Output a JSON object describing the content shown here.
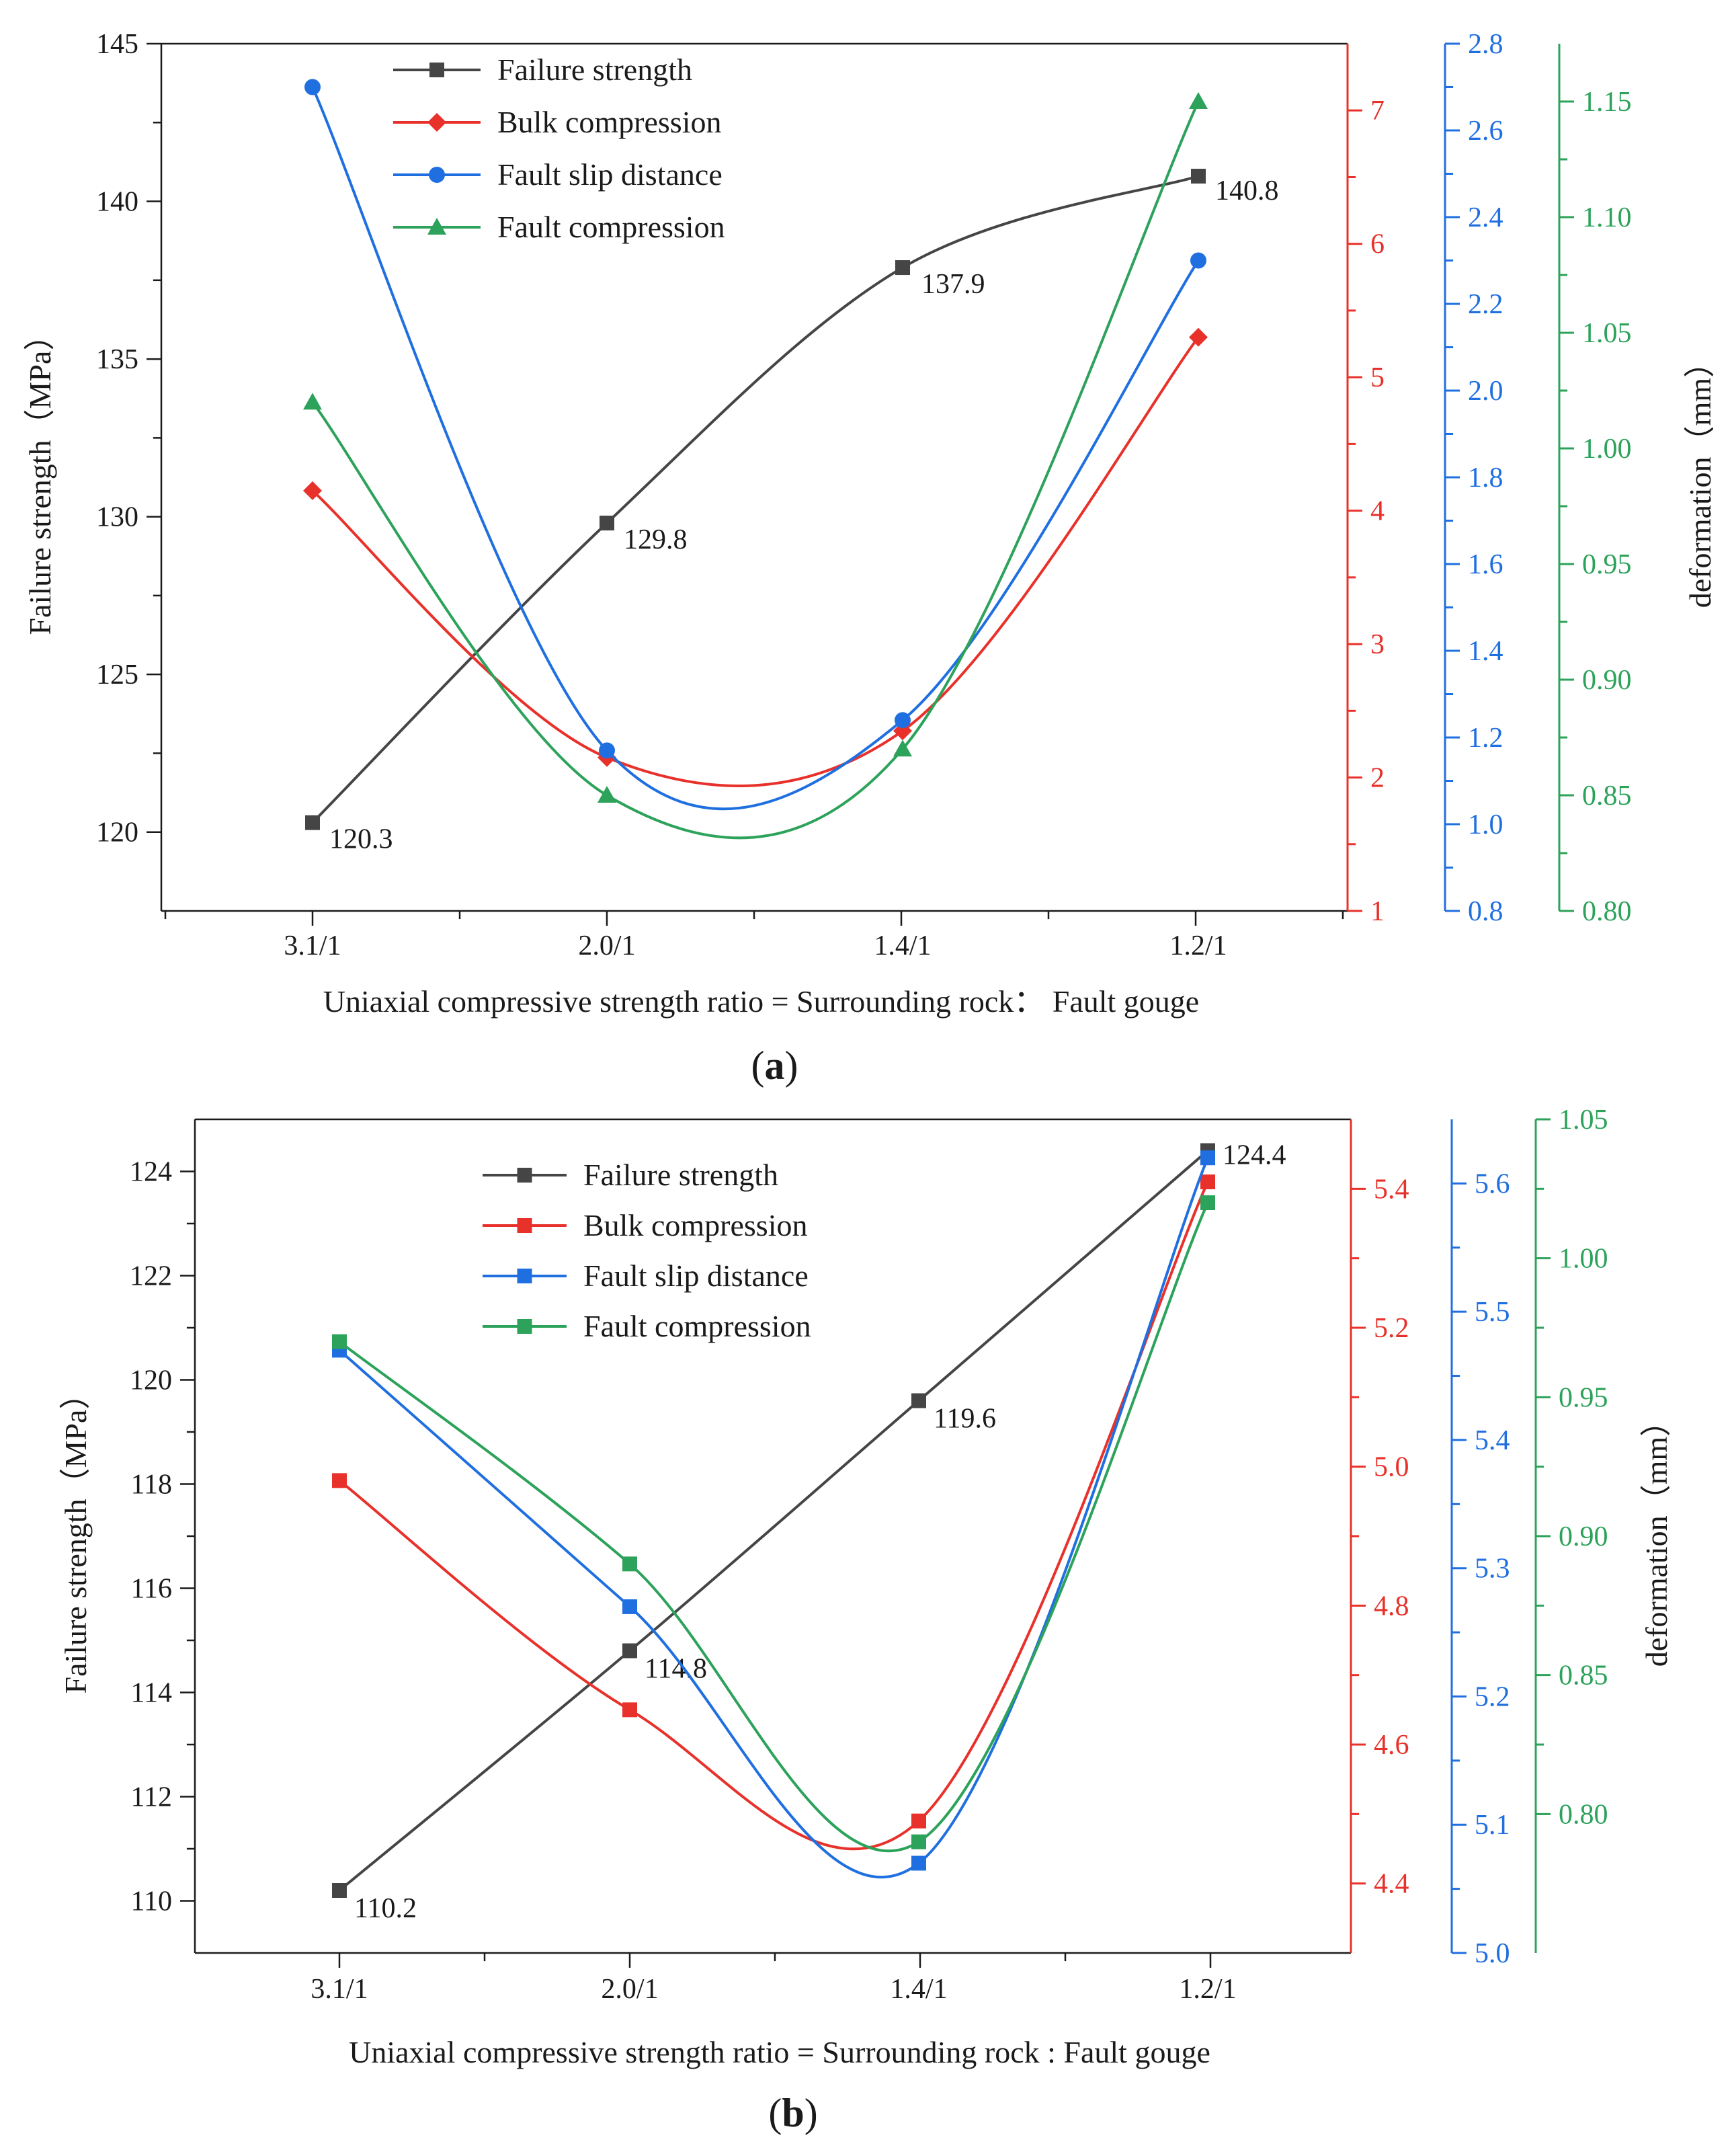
{
  "chart_data": [
    {
      "type": "line",
      "panel_label": "a",
      "categories": [
        "3.1/1",
        "2.0/1",
        "1.4/1",
        "1.2/1"
      ],
      "xlabel": "Uniaxial compressive strength ratio = Surrounding rock： Fault gouge",
      "ylabel": "Failure strength（MPa）",
      "right_ylabel": "deformation（mm）",
      "legend_position": "top-center",
      "axes": [
        {
          "id": "left",
          "color": "#1a1a1a",
          "range": [
            117.5,
            145
          ],
          "ticks": [
            120,
            125,
            130,
            135,
            140,
            145
          ]
        },
        {
          "id": "red",
          "color": "#e8312a",
          "range": [
            1,
            7.5
          ],
          "ticks": [
            1,
            2,
            3,
            4,
            5,
            6,
            7
          ]
        },
        {
          "id": "blue",
          "color": "#1f6fe0",
          "range": [
            0.8,
            2.8
          ],
          "ticks": [
            "0.8",
            "1.0",
            "1.2",
            "1.4",
            "1.6",
            "1.8",
            "2.0",
            "2.2",
            "2.4",
            "2.6",
            "2.8"
          ]
        },
        {
          "id": "green",
          "color": "#2ca25a",
          "range": [
            0.8,
            1.175
          ],
          "ticks": [
            "0.80",
            "0.85",
            "0.90",
            "0.95",
            "1.00",
            "1.05",
            "1.10",
            "1.15"
          ]
        }
      ],
      "series": [
        {
          "name": "Failure strength",
          "axis": "left",
          "color": "#454545",
          "marker": "square",
          "values": [
            120.3,
            129.8,
            137.9,
            140.8
          ],
          "labels": [
            "120.3",
            "129.8",
            "137.9",
            "140.8"
          ]
        },
        {
          "name": "Bulk compression",
          "axis": "red",
          "color": "#e8312a",
          "marker": "diamond",
          "values": [
            4.15,
            2.15,
            2.35,
            5.3
          ]
        },
        {
          "name": "Fault slip distance",
          "axis": "blue",
          "color": "#1f6fe0",
          "marker": "circle",
          "values": [
            2.7,
            1.17,
            1.24,
            2.3
          ]
        },
        {
          "name": "Fault compression",
          "axis": "green",
          "color": "#2ca25a",
          "marker": "triangle",
          "values": [
            1.02,
            0.85,
            0.87,
            1.15
          ]
        }
      ]
    },
    {
      "type": "line",
      "panel_label": "b",
      "categories": [
        "3.1/1",
        "2.0/1",
        "1.4/1",
        "1.2/1"
      ],
      "xlabel": "Uniaxial compressive strength ratio = Surrounding rock : Fault gouge",
      "ylabel": "Failure strength（MPa）",
      "right_ylabel": "deformation（mm）",
      "legend_position": "top-center",
      "axes": [
        {
          "id": "left",
          "color": "#1a1a1a",
          "range": [
            109,
            125
          ],
          "ticks": [
            110,
            112,
            114,
            116,
            118,
            120,
            122,
            124
          ]
        },
        {
          "id": "red",
          "color": "#e8312a",
          "range": [
            4.3,
            5.5
          ],
          "ticks": [
            "4.4",
            "4.6",
            "4.8",
            "5.0",
            "5.2",
            "5.4"
          ]
        },
        {
          "id": "blue",
          "color": "#1f6fe0",
          "range": [
            5.0,
            5.65
          ],
          "ticks": [
            "5.0",
            "5.1",
            "5.2",
            "5.3",
            "5.4",
            "5.5",
            "5.6"
          ]
        },
        {
          "id": "green",
          "color": "#2ca25a",
          "range": [
            0.75,
            1.05
          ],
          "ticks": [
            "0.80",
            "0.85",
            "0.90",
            "0.95",
            "1.00",
            "1.05"
          ]
        }
      ],
      "series": [
        {
          "name": "Failure strength",
          "axis": "left",
          "color": "#454545",
          "marker": "square",
          "values": [
            110.2,
            114.8,
            119.6,
            124.4
          ],
          "labels": [
            "110.2",
            "114.8",
            "119.6",
            "124.4"
          ]
        },
        {
          "name": "Bulk compression",
          "axis": "red",
          "color": "#e8312a",
          "marker": "square",
          "values": [
            4.98,
            4.65,
            4.49,
            5.41
          ]
        },
        {
          "name": "Fault slip distance",
          "axis": "blue",
          "color": "#1f6fe0",
          "marker": "square",
          "values": [
            5.47,
            5.27,
            5.07,
            5.62
          ]
        },
        {
          "name": "Fault compression",
          "axis": "green",
          "color": "#2ca25a",
          "marker": "square",
          "values": [
            0.97,
            0.89,
            0.79,
            1.02
          ]
        }
      ]
    }
  ]
}
